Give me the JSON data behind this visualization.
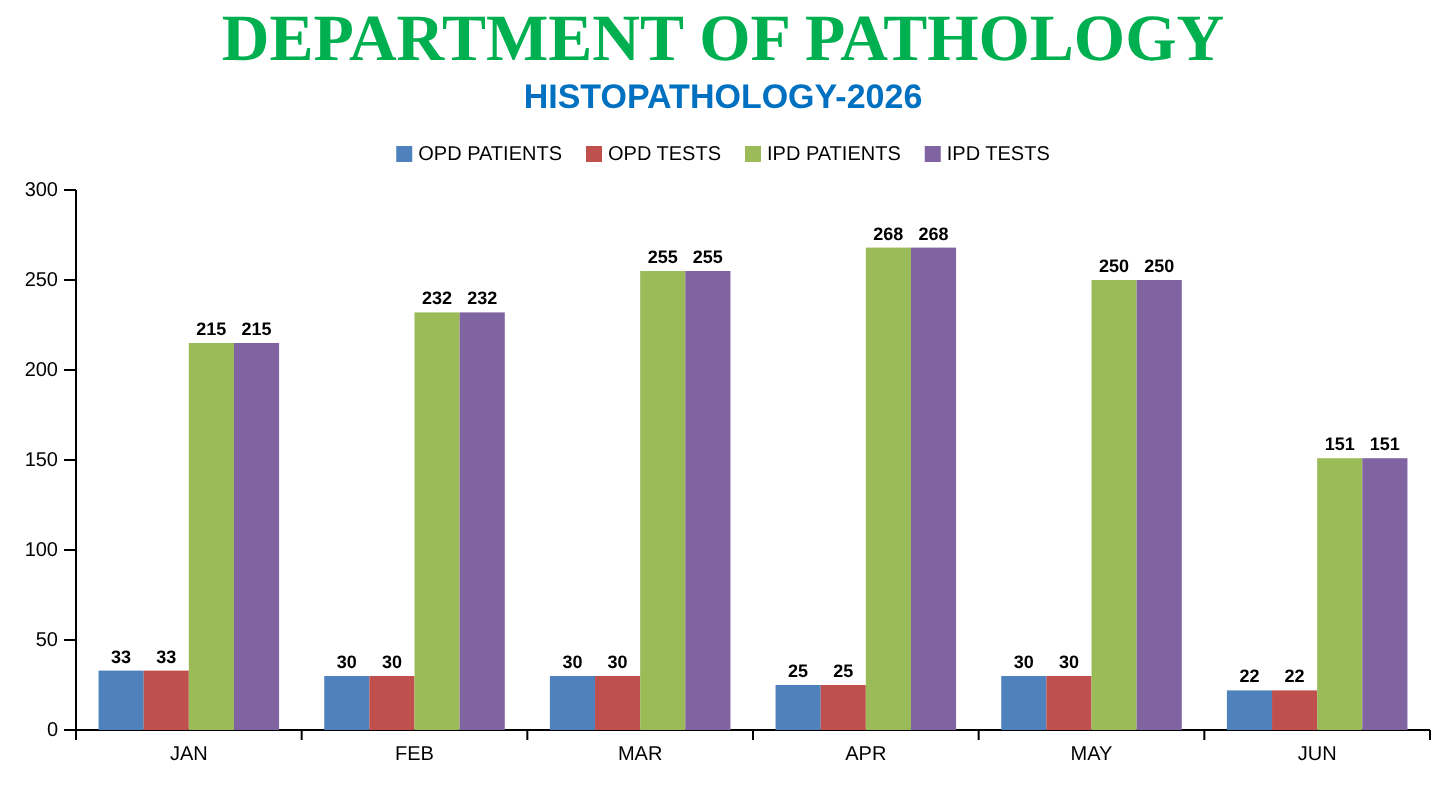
{
  "chart_data": {
    "type": "bar",
    "title": "DEPARTMENT OF PATHOLOGY",
    "subtitle": "HISTOPATHOLOGY-2026",
    "categories": [
      "JAN",
      "FEB",
      "MAR",
      "APR",
      "MAY",
      "JUN"
    ],
    "series": [
      {
        "name": "OPD PATIENTS",
        "color": "#4f81bd",
        "values": [
          33,
          30,
          30,
          25,
          30,
          22
        ]
      },
      {
        "name": "OPD TESTS",
        "color": "#c0504d",
        "values": [
          33,
          30,
          30,
          25,
          30,
          22
        ]
      },
      {
        "name": "IPD PATIENTS",
        "color": "#9bbb59",
        "values": [
          215,
          232,
          255,
          268,
          250,
          151
        ]
      },
      {
        "name": "IPD TESTS",
        "color": "#8064a2",
        "values": [
          215,
          232,
          255,
          268,
          250,
          151
        ]
      }
    ],
    "ylim": [
      0,
      300
    ],
    "yticks": [
      0,
      50,
      100,
      150,
      200,
      250,
      300
    ],
    "grid": false,
    "legend": "top",
    "data_labels": true
  }
}
